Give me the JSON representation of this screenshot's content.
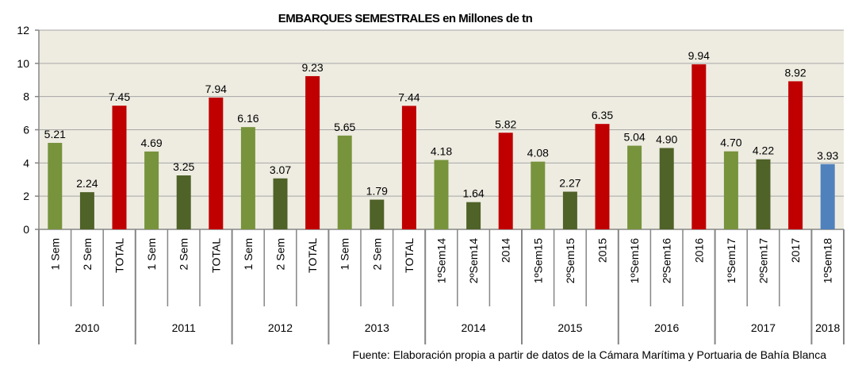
{
  "chart_data": {
    "type": "bar",
    "title": "EMBARQUES SEMESTRALES en Millones de tn",
    "source": "Fuente: Elaboración propia a partir de datos de la Cámara Marítima y Portuaria de Bahía Blanca",
    "ylim": [
      0,
      12
    ],
    "yticks": [
      0,
      2,
      4,
      6,
      8,
      10,
      12
    ],
    "grid": true,
    "groups": [
      {
        "label": "2010",
        "categories": [
          "1 Sem",
          "2 Sem",
          "TOTAL"
        ],
        "values": [
          5.21,
          2.24,
          7.45
        ],
        "kinds": [
          "s1",
          "s2",
          "total"
        ]
      },
      {
        "label": "2011",
        "categories": [
          "1 Sem",
          "2 Sem",
          "TOTAL"
        ],
        "values": [
          4.69,
          3.25,
          7.94
        ],
        "kinds": [
          "s1",
          "s2",
          "total"
        ]
      },
      {
        "label": "2012",
        "categories": [
          "1 Sem",
          "2 Sem",
          "TOTAL"
        ],
        "values": [
          6.16,
          3.07,
          9.23
        ],
        "kinds": [
          "s1",
          "s2",
          "total"
        ]
      },
      {
        "label": "2013",
        "categories": [
          "1 Sem",
          "2 Sem",
          "TOTAL"
        ],
        "values": [
          5.65,
          1.79,
          7.44
        ],
        "kinds": [
          "s1",
          "s2",
          "total"
        ]
      },
      {
        "label": "2014",
        "categories": [
          "1ºSem14",
          "2ºSem14",
          "2014"
        ],
        "values": [
          4.18,
          1.64,
          5.82
        ],
        "kinds": [
          "s1",
          "s2",
          "total"
        ]
      },
      {
        "label": "2015",
        "categories": [
          "1ºSem15",
          "2ºSem15",
          "2015"
        ],
        "values": [
          4.08,
          2.27,
          6.35
        ],
        "kinds": [
          "s1",
          "s2",
          "total"
        ]
      },
      {
        "label": "2016",
        "categories": [
          "1ºSem16",
          "2ºSem16",
          "2016"
        ],
        "values": [
          5.04,
          4.9,
          9.94
        ],
        "kinds": [
          "s1",
          "s2",
          "total"
        ]
      },
      {
        "label": "2017",
        "categories": [
          "1ºSem17",
          "2ºSem17",
          "2017"
        ],
        "values": [
          4.7,
          4.22,
          8.92
        ],
        "kinds": [
          "s1",
          "s2",
          "total"
        ]
      },
      {
        "label": "2018",
        "categories": [
          "1ºSem18"
        ],
        "values": [
          3.93
        ],
        "kinds": [
          "current"
        ]
      }
    ],
    "colors": {
      "s1": "#77933c",
      "s2": "#4f6228",
      "total": "#c00000",
      "current": "#4f81bd",
      "background": "#eeece1",
      "grid": "#a6a6a6",
      "axis": "#868686"
    }
  }
}
